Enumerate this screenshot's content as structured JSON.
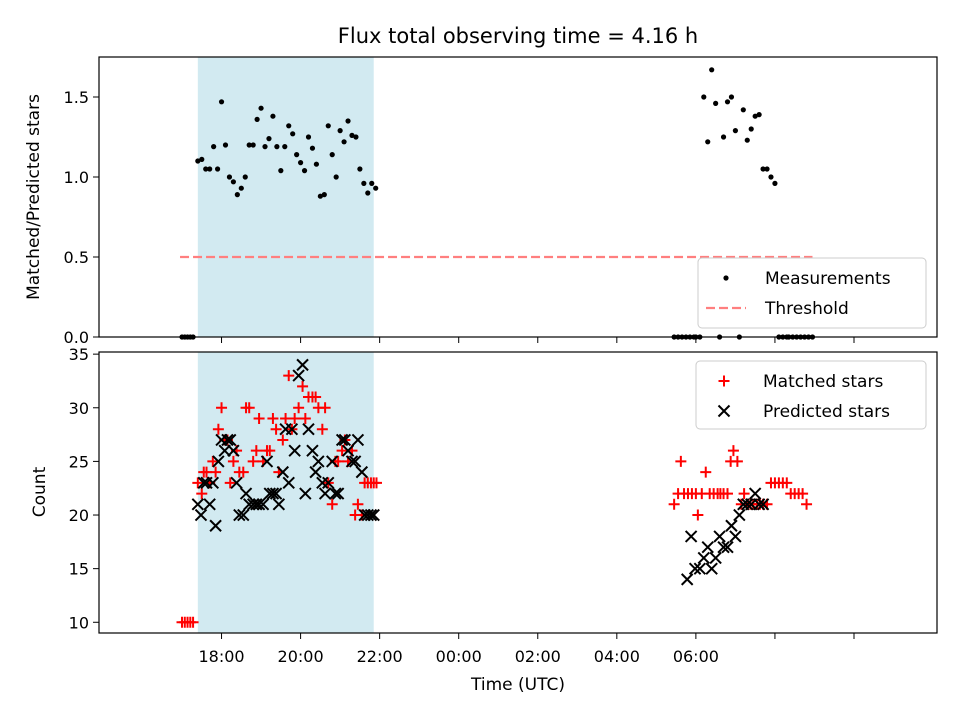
{
  "title": "Flux total observing time = 4.16 h",
  "chart_data": [
    {
      "type": "scatter",
      "ylabel": "Matched/Predicted stars",
      "xlim": [
        -2.1,
        19.1
      ],
      "ylim": [
        0,
        1.75
      ],
      "yticks": [
        0.0,
        0.5,
        1.0,
        1.5
      ],
      "ytick_labels": [
        "0.0",
        "0.5",
        "1.0",
        "1.5"
      ],
      "shaded_span": [
        0.4,
        4.85
      ],
      "shaded_color": "#add8e6",
      "legend_position": "lower right",
      "series": [
        {
          "name": "Measurements",
          "kind": "dot",
          "color": "#000000",
          "x": [
            0.0,
            0.07,
            0.14,
            0.21,
            0.28,
            0.4,
            0.5,
            0.6,
            0.7,
            0.8,
            0.9,
            1.0,
            1.1,
            1.2,
            1.3,
            1.4,
            1.5,
            1.6,
            1.7,
            1.8,
            1.9,
            2.0,
            2.1,
            2.2,
            2.3,
            2.4,
            2.5,
            2.6,
            2.7,
            2.8,
            2.9,
            3.0,
            3.1,
            3.2,
            3.3,
            3.4,
            3.5,
            3.6,
            3.7,
            3.8,
            3.9,
            4.0,
            4.1,
            4.2,
            4.3,
            4.4,
            4.5,
            4.6,
            4.7,
            4.8,
            4.9,
            12.45,
            12.55,
            12.65,
            12.75,
            12.85,
            12.95,
            13.0,
            13.1,
            13.2,
            13.3,
            13.4,
            13.5,
            13.6,
            13.7,
            13.8,
            13.9,
            14.0,
            14.1,
            14.2,
            14.3,
            14.4,
            14.5,
            14.6,
            14.7,
            14.8,
            14.9,
            15.0,
            15.1,
            15.2,
            15.3,
            15.35,
            15.45,
            15.55,
            15.65,
            15.75,
            15.85,
            15.95
          ],
          "y": [
            0,
            0,
            0,
            0,
            0,
            1.1,
            1.11,
            1.05,
            1.05,
            1.19,
            1.05,
            1.47,
            1.2,
            1.0,
            0.97,
            0.89,
            0.93,
            1.0,
            1.2,
            1.2,
            1.36,
            1.43,
            1.19,
            1.24,
            1.38,
            1.19,
            1.04,
            1.19,
            1.32,
            1.27,
            1.14,
            1.09,
            1.04,
            1.25,
            1.18,
            1.08,
            0.88,
            0.89,
            1.32,
            1.14,
            1.0,
            1.29,
            1.22,
            1.35,
            1.26,
            1.25,
            1.05,
            0.96,
            0.9,
            0.96,
            0.93,
            0,
            0,
            0,
            0,
            0,
            0,
            0,
            0,
            1.5,
            1.22,
            1.67,
            1.46,
            0,
            1.25,
            1.47,
            1.5,
            1.29,
            0,
            1.42,
            1.23,
            1.3,
            1.38,
            1.39,
            1.05,
            1.05,
            1.0,
            0.96,
            0,
            0,
            0,
            0,
            0,
            0,
            0,
            0,
            0,
            0
          ]
        },
        {
          "name": "Threshold",
          "kind": "dashed-line",
          "color": "#ff7f7f",
          "x": [
            -0.05,
            15.95
          ],
          "y": [
            0.5,
            0.5
          ]
        }
      ]
    },
    {
      "type": "scatter",
      "xlabel": "Time (UTC)",
      "ylabel": "Count",
      "xlim": [
        -2.1,
        19.1
      ],
      "ylim": [
        9,
        35.2
      ],
      "yticks": [
        10,
        15,
        20,
        25,
        30,
        35
      ],
      "ytick_labels": [
        "10",
        "15",
        "20",
        "25",
        "30",
        "35"
      ],
      "xticks": [
        1,
        3,
        5,
        7,
        9,
        11,
        13,
        15,
        17
      ],
      "xtick_labels": [
        "18:00",
        "20:00",
        "22:00",
        "00:00",
        "02:00",
        "04:00",
        "06:00"
      ],
      "xtick_labels_at": [
        1,
        3,
        5,
        7,
        9,
        11,
        13
      ],
      "shaded_span": [
        0.4,
        4.85
      ],
      "shaded_color": "#add8e6",
      "legend_position": "upper right",
      "series": [
        {
          "name": "Matched stars",
          "kind": "plus",
          "color": "#ff0000",
          "x": [
            0.0,
            0.07,
            0.14,
            0.21,
            0.28,
            0.4,
            0.5,
            0.55,
            0.62,
            0.7,
            0.78,
            0.85,
            0.92,
            1.0,
            1.08,
            1.15,
            1.22,
            1.3,
            1.38,
            1.45,
            1.55,
            1.62,
            1.7,
            1.8,
            1.88,
            1.95,
            2.05,
            2.15,
            2.22,
            2.3,
            2.38,
            2.45,
            2.55,
            2.62,
            2.7,
            2.78,
            2.85,
            2.95,
            3.05,
            3.12,
            3.2,
            3.3,
            3.38,
            3.45,
            3.55,
            3.62,
            3.7,
            3.8,
            3.88,
            3.95,
            4.05,
            4.12,
            4.2,
            4.3,
            4.38,
            4.45,
            4.55,
            4.62,
            4.7,
            4.78,
            4.85,
            4.92,
            12.45,
            12.55,
            12.62,
            12.7,
            12.8,
            12.9,
            13.0,
            13.05,
            13.15,
            13.25,
            13.35,
            13.45,
            13.55,
            13.62,
            13.7,
            13.8,
            13.88,
            13.95,
            14.05,
            14.15,
            14.22,
            14.3,
            14.38,
            14.45,
            14.55,
            14.62,
            14.7,
            14.8,
            14.9,
            15.0,
            15.1,
            15.2,
            15.3,
            15.4,
            15.5,
            15.6,
            15.7,
            15.8
          ],
          "y": [
            10,
            10,
            10,
            10,
            10,
            23,
            22,
            24,
            24,
            23,
            25,
            24,
            28,
            30,
            27,
            27,
            23,
            25,
            26,
            24,
            24,
            30,
            30,
            25,
            26,
            29,
            25,
            26,
            26,
            29,
            28,
            24,
            27,
            29,
            33,
            28,
            29,
            30,
            32,
            29,
            31,
            31,
            31,
            30,
            28,
            30,
            23,
            21,
            25,
            25,
            26,
            27,
            25,
            26,
            20,
            21,
            20,
            23,
            23,
            23,
            23,
            23,
            21,
            22,
            25,
            22,
            22,
            22,
            22,
            20,
            22,
            24,
            22,
            22,
            22,
            22,
            22,
            22,
            25,
            26,
            25,
            21,
            22,
            21,
            21,
            21,
            21,
            21,
            21,
            21,
            23,
            23,
            23,
            23,
            23,
            22,
            22,
            22,
            22,
            21
          ],
          "notes": ""
        },
        {
          "name": "Predicted stars",
          "kind": "x",
          "color": "#000000",
          "x": [
            0.4,
            0.48,
            0.55,
            0.62,
            0.7,
            0.78,
            0.85,
            0.92,
            1.0,
            1.08,
            1.15,
            1.22,
            1.3,
            1.38,
            1.45,
            1.55,
            1.62,
            1.7,
            1.8,
            1.88,
            1.95,
            2.05,
            2.15,
            2.22,
            2.3,
            2.38,
            2.45,
            2.55,
            2.62,
            2.7,
            2.78,
            2.85,
            2.95,
            3.05,
            3.12,
            3.2,
            3.3,
            3.38,
            3.45,
            3.55,
            3.62,
            3.7,
            3.8,
            3.88,
            3.95,
            4.05,
            4.12,
            4.2,
            4.3,
            4.38,
            4.45,
            4.55,
            4.62,
            4.7,
            4.78,
            4.85,
            12.78,
            12.88,
            12.98,
            13.1,
            13.2,
            13.3,
            13.4,
            13.5,
            13.6,
            13.7,
            13.8,
            13.9,
            14.0,
            14.1,
            14.2,
            14.3,
            14.4,
            14.5,
            14.6,
            14.7
          ],
          "y": [
            21,
            20,
            23,
            23,
            21,
            23,
            19,
            25,
            27,
            26,
            27,
            27,
            26,
            23,
            20,
            20,
            22,
            21,
            21,
            21,
            21,
            21,
            25,
            22,
            22,
            22,
            21,
            24,
            28,
            23,
            28,
            26,
            33,
            34,
            22,
            28,
            26,
            24,
            25,
            23,
            22,
            23,
            25,
            22,
            22,
            27,
            27,
            26,
            25,
            25,
            27,
            24,
            20,
            20,
            20,
            20,
            14,
            18,
            15,
            15,
            16,
            17,
            15,
            16,
            18,
            17,
            17,
            19,
            18,
            20,
            21,
            21,
            21,
            22,
            21,
            21
          ]
        }
      ]
    }
  ]
}
